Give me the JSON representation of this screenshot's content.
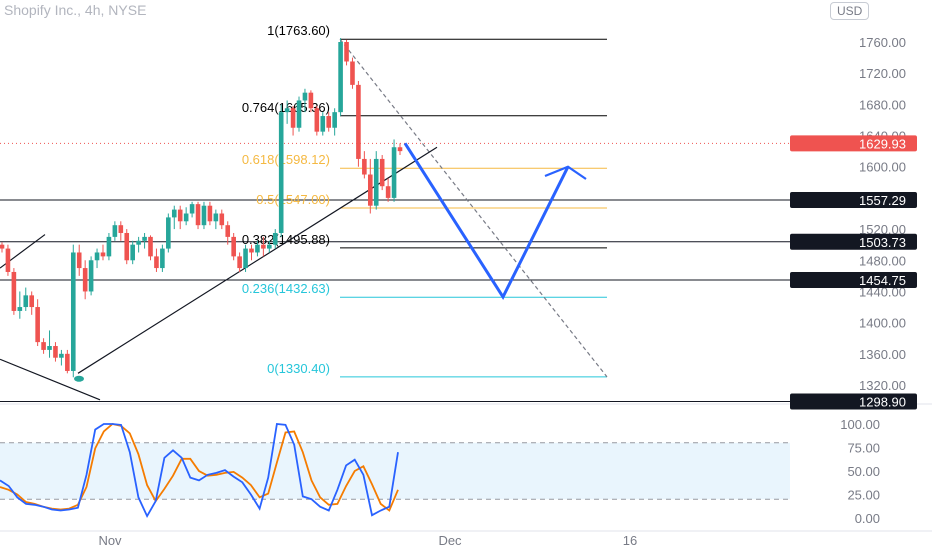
{
  "header": {
    "title": "Shopify Inc., 4h, NYSE",
    "currency": "USD"
  },
  "colors": {
    "up": "#26a69a",
    "down": "#ef5350",
    "k_line": "#2962ff",
    "d_line": "#f57c00",
    "fib_upper": "#000000",
    "fib_618": "#f5b942",
    "fib_236": "#26c6da",
    "projection": "#2962ff"
  },
  "chart_data": [
    {
      "type": "candlestick",
      "title": "Shopify Inc., 4h, NYSE",
      "ylim": [
        1290,
        1790
      ],
      "y_ticks": [
        "1760.00",
        "1720.00",
        "1680.00",
        "1640.00",
        "1600.00",
        "1560.00",
        "1520.00",
        "1480.00",
        "1440.00",
        "1400.00",
        "1360.00",
        "1320.00"
      ],
      "x_ticks": [
        "Nov",
        "Dec",
        "16"
      ],
      "last_price": "1629.93",
      "price_levels": [
        "1557.29",
        "1503.73",
        "1454.75",
        "1298.90"
      ],
      "fib_levels": [
        {
          "ratio": "1",
          "price": "1763.60"
        },
        {
          "ratio": "0.764",
          "price": "1665.36"
        },
        {
          "ratio": "0.618",
          "price": "1598.12"
        },
        {
          "ratio": "0.5",
          "price": "1547.00"
        },
        {
          "ratio": "0.382",
          "price": "1495.88"
        },
        {
          "ratio": "0.236",
          "price": "1432.63"
        },
        {
          "ratio": "0",
          "price": "1330.40"
        }
      ],
      "candles": [
        [
          1500,
          1503,
          1490,
          1495
        ],
        [
          1495,
          1500,
          1460,
          1465
        ],
        [
          1465,
          1470,
          1410,
          1415
        ],
        [
          1415,
          1440,
          1405,
          1420
        ],
        [
          1420,
          1445,
          1415,
          1435
        ],
        [
          1435,
          1440,
          1410,
          1420
        ],
        [
          1420,
          1430,
          1370,
          1375
        ],
        [
          1375,
          1380,
          1360,
          1365
        ],
        [
          1365,
          1390,
          1355,
          1370
        ],
        [
          1370,
          1375,
          1350,
          1355
        ],
        [
          1355,
          1365,
          1345,
          1360
        ],
        [
          1360,
          1365,
          1335,
          1338
        ],
        [
          1338,
          1500,
          1330,
          1490
        ],
        [
          1490,
          1500,
          1460,
          1470
        ],
        [
          1470,
          1480,
          1430,
          1440
        ],
        [
          1440,
          1485,
          1435,
          1480
        ],
        [
          1480,
          1495,
          1470,
          1490
        ],
        [
          1490,
          1500,
          1480,
          1485
        ],
        [
          1485,
          1515,
          1480,
          1510
        ],
        [
          1510,
          1530,
          1505,
          1525
        ],
        [
          1525,
          1530,
          1505,
          1515
        ],
        [
          1515,
          1520,
          1475,
          1480
        ],
        [
          1480,
          1505,
          1475,
          1500
        ],
        [
          1500,
          1510,
          1490,
          1505
        ],
        [
          1505,
          1515,
          1495,
          1510
        ],
        [
          1510,
          1512,
          1480,
          1485
        ],
        [
          1485,
          1495,
          1465,
          1470
        ],
        [
          1470,
          1500,
          1465,
          1495
        ],
        [
          1495,
          1540,
          1490,
          1535
        ],
        [
          1535,
          1550,
          1520,
          1545
        ],
        [
          1545,
          1550,
          1520,
          1530
        ],
        [
          1530,
          1548,
          1525,
          1540
        ],
        [
          1540,
          1555,
          1535,
          1552
        ],
        [
          1552,
          1555,
          1520,
          1525
        ],
        [
          1525,
          1555,
          1520,
          1550
        ],
        [
          1550,
          1555,
          1525,
          1530
        ],
        [
          1530,
          1545,
          1520,
          1540
        ],
        [
          1540,
          1545,
          1520,
          1525
        ],
        [
          1525,
          1530,
          1500,
          1510
        ],
        [
          1510,
          1515,
          1480,
          1485
        ],
        [
          1485,
          1490,
          1465,
          1470
        ],
        [
          1470,
          1500,
          1465,
          1495
        ],
        [
          1495,
          1500,
          1480,
          1490
        ],
        [
          1490,
          1505,
          1485,
          1500
        ],
        [
          1500,
          1510,
          1485,
          1495
        ],
        [
          1495,
          1505,
          1490,
          1500
        ],
        [
          1500,
          1520,
          1495,
          1515
        ],
        [
          1515,
          1680,
          1510,
          1670
        ],
        [
          1670,
          1685,
          1655,
          1675
        ],
        [
          1675,
          1678,
          1640,
          1650
        ],
        [
          1650,
          1690,
          1645,
          1685
        ],
        [
          1685,
          1700,
          1670,
          1695
        ],
        [
          1695,
          1698,
          1670,
          1675
        ],
        [
          1675,
          1678,
          1640,
          1645
        ],
        [
          1645,
          1670,
          1640,
          1665
        ],
        [
          1665,
          1670,
          1645,
          1650
        ],
        [
          1650,
          1675,
          1640,
          1670
        ],
        [
          1670,
          1765,
          1665,
          1760
        ],
        [
          1760,
          1763,
          1730,
          1735
        ],
        [
          1735,
          1740,
          1700,
          1705
        ],
        [
          1705,
          1710,
          1600,
          1610
        ],
        [
          1610,
          1620,
          1585,
          1590
        ],
        [
          1590,
          1610,
          1540,
          1550
        ],
        [
          1550,
          1620,
          1545,
          1610
        ],
        [
          1610,
          1615,
          1570,
          1575
        ],
        [
          1575,
          1585,
          1555,
          1560
        ],
        [
          1560,
          1635,
          1555,
          1625
        ],
        [
          1625,
          1630,
          1615,
          1620
        ]
      ],
      "projection": [
        1630,
        1433,
        1600
      ],
      "stochastic": {
        "ylim": [
          0,
          100
        ],
        "y_ticks": [
          "100.00",
          "75.00",
          "50.00",
          "25.00",
          "0.00"
        ],
        "k": [
          40,
          34,
          22,
          15,
          14,
          12,
          9,
          8,
          9,
          11,
          46,
          94,
          100,
          100,
          99,
          70,
          22,
          2,
          18,
          64,
          72,
          64,
          43,
          40,
          46,
          48,
          51,
          44,
          38,
          25,
          10,
          43,
          100,
          99,
          78,
          23,
          20,
          12,
          8,
          30,
          56,
          62,
          46,
          3,
          8,
          12,
          70
        ],
        "d": [
          33,
          30,
          25,
          17,
          15,
          12,
          10,
          9,
          10,
          14,
          33,
          74,
          92,
          100,
          98,
          90,
          68,
          35,
          18,
          31,
          45,
          63,
          63,
          50,
          45,
          46,
          48,
          49,
          43,
          35,
          22,
          26,
          59,
          91,
          92,
          70,
          40,
          22,
          14,
          15,
          34,
          50,
          55,
          36,
          15,
          8,
          30
        ]
      }
    }
  ]
}
